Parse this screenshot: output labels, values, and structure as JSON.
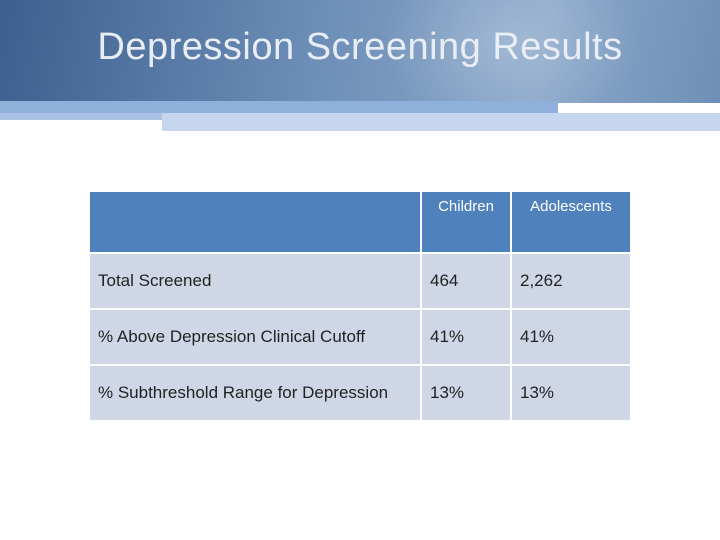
{
  "slide": {
    "title": "Depression Screening Results"
  },
  "table": {
    "columns": [
      "",
      "Children",
      "Adolescents"
    ],
    "rows": [
      {
        "label": "Total Screened",
        "children": "464",
        "adolescents": "2,262"
      },
      {
        "label": "% Above Depression Clinical Cutoff",
        "children": "41%",
        "adolescents": "41%"
      },
      {
        "label": "% Subthreshold Range for Depression",
        "children": "13%",
        "adolescents": "13%"
      }
    ]
  },
  "colors": {
    "header_band": "#5b7aa6",
    "table_header": "#4f81bd",
    "table_row": "#cfd7e6",
    "accent_strip": "#8fb0db"
  }
}
